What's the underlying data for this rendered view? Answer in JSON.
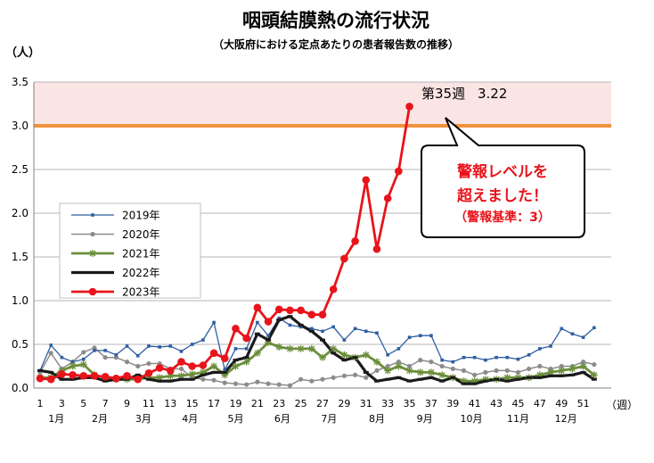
{
  "chart_data": {
    "type": "line",
    "title": "咽頭結膜熱の流行状況",
    "subtitle": "（大阪府における定点あたりの患者報告数の推移）",
    "ylabel": "（人）",
    "xlabel": "（週）",
    "ylim": [
      0,
      3.5
    ],
    "yticks": [
      "0.0",
      "0.5",
      "1.0",
      "1.5",
      "2.0",
      "2.5",
      "3.0",
      "3.5"
    ],
    "xlim": [
      1,
      53
    ],
    "xtick_weeks": [
      1,
      3,
      5,
      7,
      9,
      11,
      13,
      15,
      17,
      19,
      21,
      23,
      25,
      27,
      29,
      31,
      33,
      35,
      37,
      39,
      41,
      43,
      45,
      47,
      49,
      51
    ],
    "xticks": [
      "1",
      "3",
      "5",
      "7",
      "9",
      "11",
      "13",
      "15",
      "17",
      "19",
      "21",
      "23",
      "25",
      "27",
      "29",
      "31",
      "33",
      "35",
      "37",
      "39",
      "41",
      "43",
      "45",
      "47",
      "49",
      "51"
    ],
    "month_weeks": [
      2.5,
      6.5,
      10.5,
      14.8,
      19,
      23.3,
      27.6,
      32,
      36.4,
      40.7,
      45,
      49.4
    ],
    "months": [
      "1月",
      "2月",
      "3月",
      "4月",
      "5月",
      "6月",
      "7月",
      "8月",
      "9月",
      "10月",
      "11月",
      "12月"
    ],
    "warning_level": 3.0,
    "grid": true,
    "legend": "left-middle",
    "series": [
      {
        "name": "2019年",
        "color": "#2f5fa0",
        "marker": "dot",
        "values": [
          0.2,
          0.49,
          0.35,
          0.3,
          0.33,
          0.43,
          0.43,
          0.38,
          0.48,
          0.37,
          0.48,
          0.47,
          0.48,
          0.42,
          0.5,
          0.55,
          0.75,
          0.21,
          0.45,
          0.45,
          0.75,
          0.6,
          0.8,
          0.72,
          0.7,
          0.68,
          0.65,
          0.7,
          0.55,
          0.68,
          0.65,
          0.63,
          0.38,
          0.45,
          0.58,
          0.6,
          0.6,
          0.32,
          0.3,
          0.35,
          0.35,
          0.32,
          0.35,
          0.35,
          0.33,
          0.38,
          0.45,
          0.48,
          0.68,
          0.62,
          0.58,
          0.69
        ]
      },
      {
        "name": "2020年",
        "color": "#8c8c8c",
        "marker": "circle",
        "values": [
          0.18,
          0.4,
          0.22,
          0.3,
          0.41,
          0.46,
          0.35,
          0.35,
          0.3,
          0.25,
          0.28,
          0.28,
          0.22,
          0.22,
          0.12,
          0.1,
          0.09,
          0.06,
          0.05,
          0.04,
          0.07,
          0.05,
          0.04,
          0.03,
          0.1,
          0.08,
          0.1,
          0.12,
          0.14,
          0.15,
          0.12,
          0.2,
          0.25,
          0.3,
          0.25,
          0.32,
          0.3,
          0.25,
          0.22,
          0.2,
          0.15,
          0.18,
          0.2,
          0.2,
          0.18,
          0.22,
          0.25,
          0.22,
          0.25,
          0.25,
          0.3,
          0.27
        ]
      },
      {
        "name": "2021年",
        "color": "#6b8e3a",
        "marker": "star",
        "values": [
          0.12,
          0.12,
          0.2,
          0.25,
          0.27,
          0.15,
          0.12,
          0.1,
          0.1,
          0.1,
          0.12,
          0.12,
          0.14,
          0.14,
          0.16,
          0.18,
          0.25,
          0.15,
          0.25,
          0.3,
          0.4,
          0.52,
          0.47,
          0.45,
          0.45,
          0.45,
          0.35,
          0.45,
          0.38,
          0.35,
          0.38,
          0.3,
          0.2,
          0.25,
          0.2,
          0.18,
          0.18,
          0.15,
          0.12,
          0.08,
          0.08,
          0.1,
          0.1,
          0.12,
          0.12,
          0.12,
          0.15,
          0.18,
          0.2,
          0.22,
          0.25,
          0.15
        ]
      },
      {
        "name": "2022年",
        "color": "#1a1a1a",
        "marker": "dash",
        "values": [
          0.2,
          0.18,
          0.1,
          0.1,
          0.12,
          0.12,
          0.08,
          0.1,
          0.1,
          0.15,
          0.1,
          0.08,
          0.08,
          0.1,
          0.1,
          0.15,
          0.18,
          0.18,
          0.32,
          0.35,
          0.62,
          0.55,
          0.78,
          0.82,
          0.72,
          0.65,
          0.55,
          0.4,
          0.32,
          0.35,
          0.18,
          0.08,
          0.1,
          0.12,
          0.08,
          0.1,
          0.12,
          0.08,
          0.12,
          0.05,
          0.05,
          0.08,
          0.1,
          0.08,
          0.1,
          0.12,
          0.12,
          0.14,
          0.14,
          0.15,
          0.18,
          0.1
        ]
      },
      {
        "name": "2023年",
        "color": "#e8141b",
        "marker": "circle-big",
        "values": [
          0.11,
          0.1,
          0.16,
          0.15,
          0.14,
          0.14,
          0.13,
          0.11,
          0.14,
          0.1,
          0.17,
          0.23,
          0.2,
          0.3,
          0.25,
          0.26,
          0.4,
          0.34,
          0.68,
          0.57,
          0.92,
          0.76,
          0.9,
          0.89,
          0.89,
          0.84,
          0.84,
          1.13,
          1.48,
          1.68,
          2.38,
          1.59,
          2.17,
          2.48,
          3.22
        ]
      }
    ],
    "annotations": {
      "latest_label": "第35週",
      "latest_value": "3.22",
      "callout_line1": "警報レベルを",
      "callout_line2": "超えました！",
      "callout_line3": "（警報基準：3）"
    }
  },
  "colors": {
    "warning_band": "#fbe4e4",
    "warning_line": "#f0923c",
    "grid": "#b4b4b4",
    "axis_text": "#000000",
    "callout_text": "#e8141b"
  }
}
